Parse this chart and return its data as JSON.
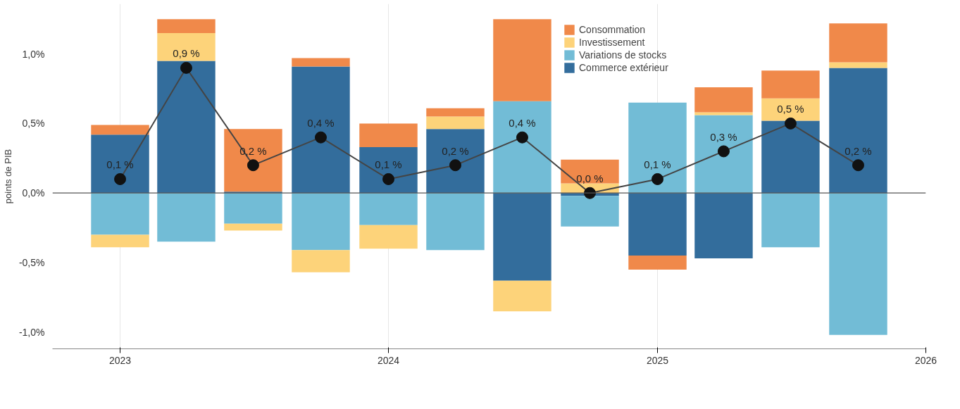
{
  "chart_data": {
    "type": "bar",
    "stacked": true,
    "ylabel": "points de PIB",
    "x": [
      "2023-01",
      "2023-04",
      "2023-07",
      "2023-10",
      "2024-01",
      "2024-04",
      "2024-07",
      "2024-10",
      "2025-01",
      "2025-04",
      "2025-07",
      "2025-10"
    ],
    "xlim": [
      "2022-10",
      "2026-01"
    ],
    "xticks": [
      {
        "value": "2023",
        "label": "2023"
      },
      {
        "value": "2024",
        "label": "2024"
      },
      {
        "value": "2025",
        "label": "2025"
      },
      {
        "value": "2026",
        "label": "2026"
      }
    ],
    "ylim": [
      -1.12,
      1.36
    ],
    "yticks": [
      {
        "value": -1.0,
        "label": "-1,0%"
      },
      {
        "value": -0.5,
        "label": "-0,5%"
      },
      {
        "value": 0,
        "label": "0,0%"
      },
      {
        "value": 0.5,
        "label": "0,5%"
      },
      {
        "value": 1.0,
        "label": "1,0%"
      }
    ],
    "grid": "x",
    "legend": "top",
    "ref_lines": [
      {
        "axis": "y",
        "value": 0,
        "label": null,
        "color": "#555555"
      }
    ],
    "series": [
      {
        "name": "Commerce extérieur",
        "color": "#336d9c",
        "values": [
          0.42,
          0.95,
          0.01,
          0.91,
          0.33,
          0.46,
          -0.63,
          -0.02,
          -0.45,
          -0.47,
          0.52,
          0.9
        ]
      },
      {
        "name": "Variations de stocks",
        "color": "#72bcd6",
        "values": [
          -0.3,
          -0.35,
          -0.22,
          -0.41,
          -0.23,
          -0.41,
          0.66,
          -0.22,
          0.65,
          0.56,
          -0.39,
          -1.02
        ]
      },
      {
        "name": "Investissement",
        "color": "#fdd37a",
        "values": [
          -0.09,
          0.2,
          -0.05,
          -0.16,
          -0.17,
          0.09,
          -0.22,
          0.07,
          0,
          0.02,
          0.16,
          0.04
        ]
      },
      {
        "name": "Consommation",
        "color": "#f0894a",
        "values": [
          0.07,
          0.1,
          0.45,
          0.06,
          0.17,
          0.06,
          0.59,
          0.17,
          -0.1,
          0.18,
          0.2,
          0.28
        ]
      },
      {
        "type": "line",
        "color": "#444444",
        "marker": "circle",
        "values": [
          0.1,
          0.9,
          0.2,
          0.4,
          0.1,
          0.2,
          0.4,
          0.0,
          0.1,
          0.3,
          0.5,
          0.2
        ],
        "value_labels": [
          "0,1 %",
          "0,9 %",
          "0,2 %",
          "0,4 %",
          "0,1 %",
          "0,2 %",
          "0,4 %",
          "0,0 %",
          "0,1 %",
          "0,3 %",
          "0,5 %",
          "0,2 %"
        ]
      }
    ]
  }
}
